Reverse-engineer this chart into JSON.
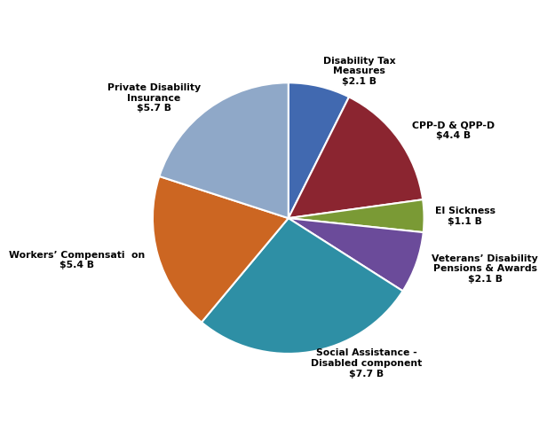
{
  "labels": [
    "Disability Tax\nMeasures\n$2.1 B",
    "CPP-D & QPP-D\n$4.4 B",
    "EI Sickness\n$1.1 B",
    "Veterans’ Disability\nPensions & Awards\n$2.1 B",
    "Social Assistance -\nDisabled component\n$7.7 B",
    "Workers’ Compensati  on\n$5.4 B",
    "Private Disability\nInsurance\n$5.7 B"
  ],
  "values": [
    2.1,
    4.4,
    1.1,
    2.1,
    7.7,
    5.4,
    5.7
  ],
  "colors": [
    "#4169B0",
    "#8B2530",
    "#7A9A35",
    "#6B4B9A",
    "#2E8FA5",
    "#CC6622",
    "#8FA8C8"
  ],
  "startangle": 90,
  "label_distances": [
    1.12,
    1.12,
    1.08,
    1.12,
    1.08,
    1.1,
    1.1
  ]
}
